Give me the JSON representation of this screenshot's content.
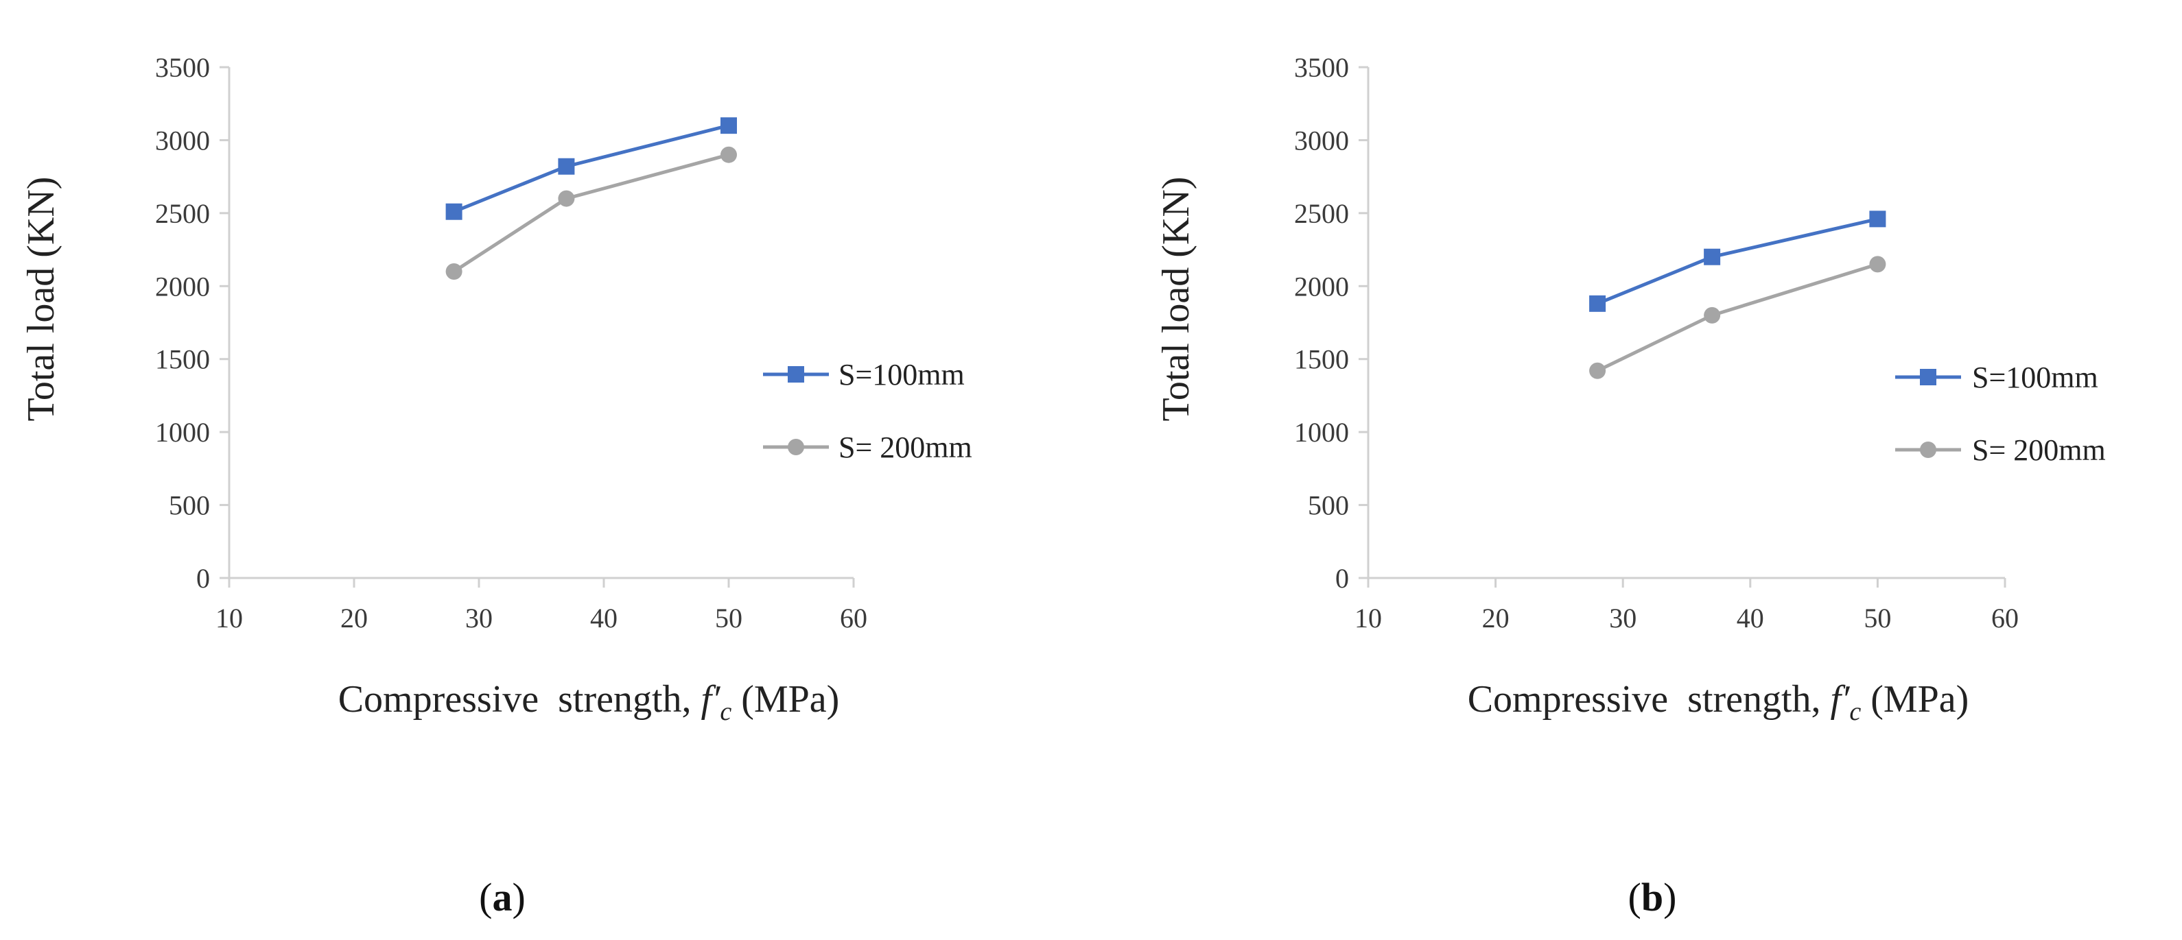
{
  "chart_data": [
    {
      "type": "line",
      "panel_label": "a",
      "x": [
        28,
        37,
        50
      ],
      "series": [
        {
          "name": "S=100mm",
          "color": "#4472C4",
          "marker": "square",
          "values": [
            2510,
            2820,
            3100
          ]
        },
        {
          "name": "S= 200mm",
          "color": "#A5A5A5",
          "marker": "circle",
          "values": [
            2100,
            2600,
            2900
          ]
        }
      ],
      "xlabel": "Compressive strength, f′c (MPa)",
      "xlabel_parts": {
        "prefix": "Compressive  strength, ",
        "symbol": "f′",
        "subscript": "c",
        "suffix": " (MPa)"
      },
      "ylabel": "Total load (KN)",
      "xlim": [
        10,
        60
      ],
      "ylim": [
        0,
        3500
      ],
      "xticks": [
        10,
        20,
        30,
        40,
        50,
        60
      ],
      "yticks": [
        0,
        500,
        1000,
        1500,
        2000,
        2500,
        3000,
        3500
      ],
      "grid": false,
      "legend": "right"
    },
    {
      "type": "line",
      "panel_label": "b",
      "x": [
        28,
        37,
        50
      ],
      "series": [
        {
          "name": "S=100mm",
          "color": "#4472C4",
          "marker": "square",
          "values": [
            1880,
            2200,
            2460
          ]
        },
        {
          "name": "S= 200mm",
          "color": "#A5A5A5",
          "marker": "circle",
          "values": [
            1420,
            1800,
            2150
          ]
        }
      ],
      "xlabel": "Compressive strength, f′c (MPa)",
      "xlabel_parts": {
        "prefix": "Compressive  strength, ",
        "symbol": "f′",
        "subscript": "c",
        "suffix": " (MPa)"
      },
      "ylabel": "Total load (KN)",
      "xlim": [
        10,
        60
      ],
      "ylim": [
        0,
        3500
      ],
      "xticks": [
        10,
        20,
        30,
        40,
        50,
        60
      ],
      "yticks": [
        0,
        500,
        1000,
        1500,
        2000,
        2500,
        3000,
        3500
      ],
      "grid": false,
      "legend": "right"
    }
  ]
}
